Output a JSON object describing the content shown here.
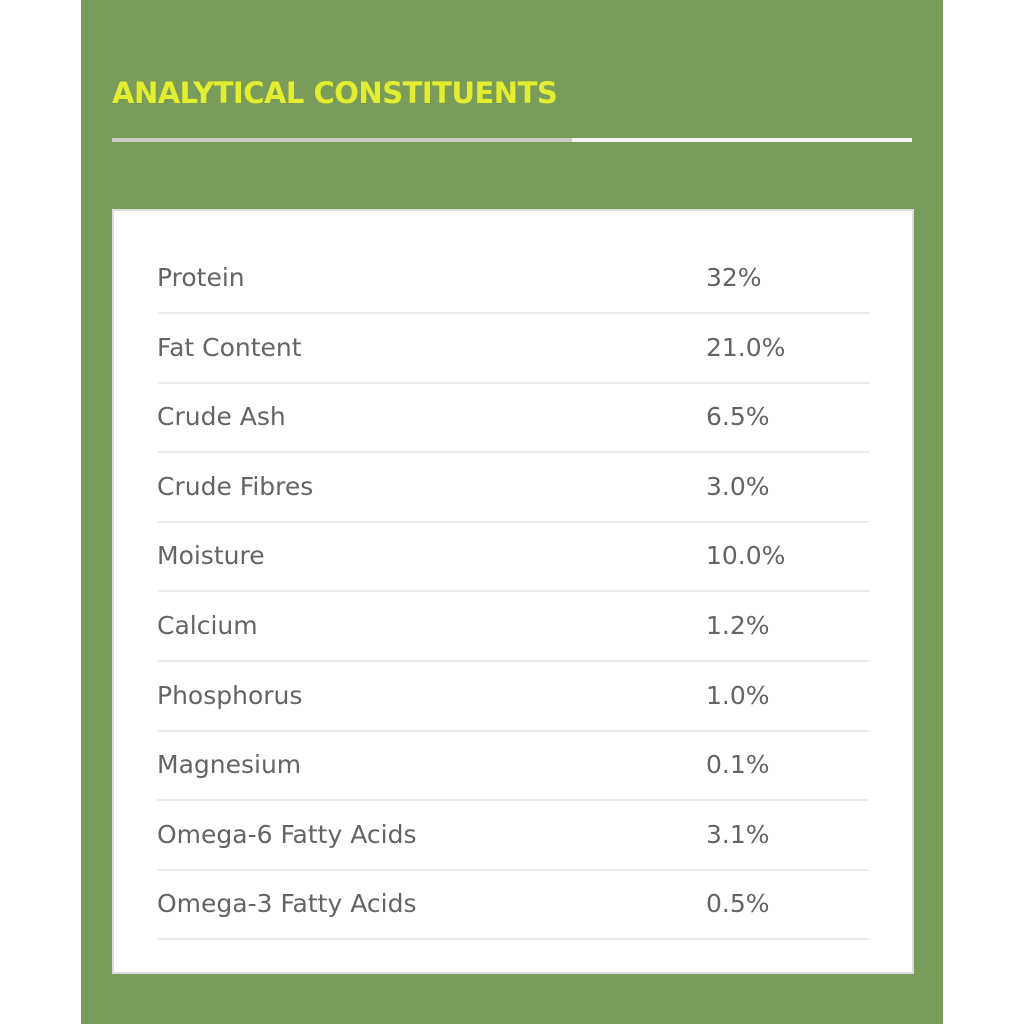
{
  "header": {
    "title": "ANALYTICAL CONSTITUENTS"
  },
  "table": {
    "rows": [
      [
        "Protein",
        "32%"
      ],
      [
        "Fat Content",
        "21.0%"
      ],
      [
        "Crude Ash",
        "6.5%"
      ],
      [
        "Crude Fibres",
        "3.0%"
      ],
      [
        "Moisture",
        "10.0%"
      ],
      [
        "Calcium",
        "1.2%"
      ],
      [
        "Phosphorus",
        "1.0%"
      ],
      [
        "Magnesium",
        "0.1%"
      ],
      [
        "Omega-6 Fatty Acids",
        "3.1%"
      ],
      [
        "Omega-3 Fatty Acids",
        "0.5%"
      ]
    ]
  }
}
